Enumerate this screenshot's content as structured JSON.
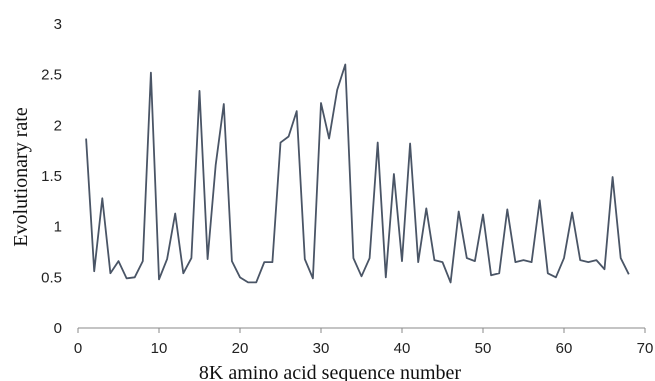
{
  "chart_data": {
    "type": "line",
    "title": "",
    "xlabel": "8K amino acid sequence number",
    "ylabel": "Evolutionary rate",
    "xlim": [
      0,
      70
    ],
    "ylim": [
      0,
      3
    ],
    "xticks": [
      0,
      10,
      20,
      30,
      40,
      50,
      60,
      70
    ],
    "yticks": [
      0,
      0.5,
      1,
      1.5,
      2,
      2.5,
      3
    ],
    "ytick_labels": [
      "0",
      "0.5",
      "1",
      "1.5",
      "2",
      "2.5",
      "3"
    ],
    "grid": false,
    "legend": "none",
    "line_color": "#4a5566",
    "series": [
      {
        "x": [
          1,
          2,
          3,
          4,
          5,
          6,
          7,
          8,
          9,
          10,
          11,
          12,
          13,
          14,
          15,
          16,
          17,
          18,
          19,
          20,
          21,
          22,
          23,
          24,
          25,
          26,
          27,
          28,
          29,
          30,
          31,
          32,
          33,
          34,
          35,
          36,
          37,
          38,
          39,
          40,
          41,
          42,
          43,
          44,
          45,
          46,
          47,
          48,
          49,
          50,
          51,
          52,
          53,
          54,
          55,
          56,
          57,
          58,
          59,
          60,
          61,
          62,
          63,
          64,
          65,
          66,
          67,
          68
        ],
        "values": [
          1.87,
          0.56,
          1.28,
          0.54,
          0.66,
          0.49,
          0.5,
          0.66,
          2.52,
          0.48,
          0.68,
          1.13,
          0.54,
          0.69,
          2.34,
          0.68,
          1.61,
          2.21,
          0.66,
          0.5,
          0.45,
          0.45,
          0.65,
          0.65,
          1.83,
          1.89,
          2.14,
          0.68,
          0.49,
          2.22,
          1.87,
          2.35,
          2.6,
          0.69,
          0.51,
          0.69,
          1.83,
          0.5,
          1.52,
          0.66,
          1.82,
          0.65,
          1.18,
          0.67,
          0.65,
          0.45,
          1.15,
          0.69,
          0.66,
          1.12,
          0.52,
          0.54,
          1.17,
          0.65,
          0.67,
          0.65,
          1.26,
          0.54,
          0.5,
          0.69,
          1.14,
          0.67,
          0.65,
          0.67,
          0.58,
          1.49,
          0.69,
          0.53
        ]
      }
    ]
  }
}
